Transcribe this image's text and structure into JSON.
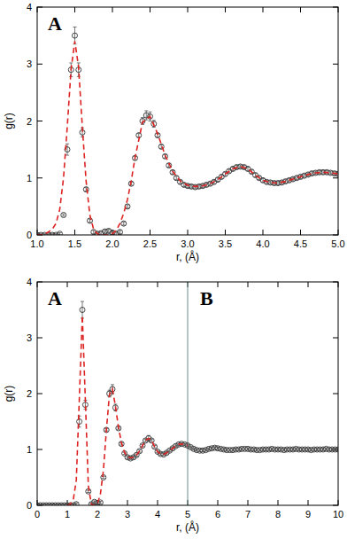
{
  "chart_data": [
    {
      "type": "scatter",
      "annotations": [
        "A"
      ],
      "x_label": "r, (Å)",
      "y_label": "g(r)",
      "xlim": [
        1.0,
        5.0
      ],
      "ylim": [
        0,
        4
      ],
      "xticks": [
        {
          "value": 1,
          "label": "1.0"
        },
        1.5,
        {
          "value": 2,
          "label": "2.0"
        },
        2.5,
        {
          "value": 3,
          "label": "3.0"
        },
        3.5,
        {
          "value": 4,
          "label": "4.0"
        },
        4.5,
        {
          "value": 5,
          "label": "5.0"
        }
      ],
      "yticks": [
        0,
        1,
        2,
        3,
        4
      ],
      "series": [
        {
          "type": "scatter",
          "marker": "open-circle",
          "color": "#333333",
          "x": [
            1.0,
            1.05,
            1.1,
            1.15,
            1.2,
            1.25,
            1.3,
            1.35,
            1.4,
            1.45,
            1.5,
            1.55,
            1.6,
            1.65,
            1.7,
            1.75,
            1.8,
            1.85,
            1.9,
            1.95,
            2.0,
            2.05,
            2.1,
            2.15,
            2.2,
            2.25,
            2.3,
            2.35,
            2.4,
            2.45,
            2.5,
            2.55,
            2.6,
            2.65,
            2.7,
            2.75,
            2.8,
            2.85,
            2.9,
            2.95,
            3.0,
            3.05,
            3.1,
            3.15,
            3.2,
            3.25,
            3.3,
            3.35,
            3.4,
            3.45,
            3.5,
            3.55,
            3.6,
            3.65,
            3.7,
            3.75,
            3.8,
            3.85,
            3.9,
            3.95,
            4.0,
            4.05,
            4.1,
            4.15,
            4.2,
            4.25,
            4.3,
            4.35,
            4.4,
            4.45,
            4.5,
            4.55,
            4.6,
            4.65,
            4.7,
            4.75,
            4.8,
            4.85,
            4.9,
            4.95,
            5.0
          ],
          "values": [
            0,
            0,
            0,
            0,
            0,
            0,
            0.02,
            0.35,
            1.5,
            2.9,
            3.5,
            2.9,
            1.8,
            0.8,
            0.25,
            0.05,
            0.02,
            0.03,
            0.06,
            0.07,
            0.04,
            0.02,
            0.05,
            0.2,
            0.5,
            0.9,
            1.35,
            1.75,
            2.0,
            2.1,
            2.08,
            1.95,
            1.75,
            1.55,
            1.38,
            1.22,
            1.1,
            1.0,
            0.93,
            0.88,
            0.86,
            0.85,
            0.84,
            0.85,
            0.86,
            0.88,
            0.9,
            0.93,
            0.97,
            1.02,
            1.07,
            1.12,
            1.16,
            1.19,
            1.2,
            1.19,
            1.16,
            1.11,
            1.05,
            1.0,
            0.96,
            0.93,
            0.92,
            0.91,
            0.91,
            0.92,
            0.94,
            0.96,
            0.98,
            1.0,
            1.02,
            1.04,
            1.06,
            1.08,
            1.09,
            1.1,
            1.1,
            1.1,
            1.09,
            1.08,
            1.07
          ],
          "errors": [
            0.02,
            0.02,
            0.02,
            0.02,
            0.02,
            0.02,
            0.02,
            0.02,
            0.1,
            0.12,
            0.15,
            0.12,
            0.08,
            0.03,
            0.03,
            0.03,
            0.03,
            0.03,
            0.03,
            0.03,
            0.03,
            0.03,
            0.03,
            0.03,
            0.03,
            0.03,
            0.03,
            0.03,
            0.06,
            0.08,
            0.08,
            0.06,
            0.03,
            0.03,
            0.03,
            0.03,
            0.03,
            0.03,
            0.03,
            0.03,
            0.03,
            0.03,
            0.03,
            0.03,
            0.03,
            0.03,
            0.03,
            0.03,
            0.03,
            0.03,
            0.03,
            0.03,
            0.03,
            0.03,
            0.03,
            0.03,
            0.03,
            0.03,
            0.03,
            0.03,
            0.03,
            0.03,
            0.03,
            0.03,
            0.03,
            0.03,
            0.03,
            0.03,
            0.03,
            0.03,
            0.03,
            0.03,
            0.03,
            0.03,
            0.03,
            0.03,
            0.03,
            0.03,
            0.03,
            0.03,
            0.03
          ]
        },
        {
          "type": "line",
          "line_style": "dashed",
          "color": "#dd2222",
          "x": [
            1.0,
            1.05,
            1.1,
            1.15,
            1.2,
            1.25,
            1.3,
            1.35,
            1.4,
            1.45,
            1.5,
            1.55,
            1.6,
            1.65,
            1.7,
            1.75,
            1.8,
            1.85,
            1.9,
            1.95,
            2.0,
            2.05,
            2.1,
            2.15,
            2.2,
            2.25,
            2.3,
            2.4,
            2.5,
            2.6,
            2.7,
            2.8,
            2.9,
            3.0,
            3.1,
            3.2,
            3.3,
            3.4,
            3.5,
            3.6,
            3.7,
            3.8,
            3.9,
            4.0,
            4.1,
            4.2,
            4.3,
            4.4,
            4.5,
            4.6,
            4.7,
            4.8,
            4.9,
            5.0
          ],
          "values": [
            0,
            0,
            0.02,
            0.05,
            0.1,
            0.2,
            0.45,
            1.0,
            1.9,
            2.9,
            3.4,
            2.95,
            1.9,
            0.95,
            0.35,
            0.1,
            0.02,
            0,
            0,
            0,
            0.02,
            0.08,
            0.2,
            0.38,
            0.62,
            0.95,
            1.35,
            1.98,
            2.08,
            1.78,
            1.4,
            1.12,
            0.95,
            0.87,
            0.85,
            0.86,
            0.9,
            0.97,
            1.07,
            1.16,
            1.2,
            1.16,
            1.05,
            0.96,
            0.92,
            0.91,
            0.94,
            0.98,
            1.02,
            1.06,
            1.09,
            1.1,
            1.09,
            1.07
          ]
        }
      ]
    },
    {
      "type": "scatter",
      "annotations": [
        "A",
        "B"
      ],
      "vline": 5,
      "x_label": "r, (Å)",
      "y_label": "g(r)",
      "xlim": [
        0,
        10
      ],
      "ylim": [
        0,
        4
      ],
      "xticks": [
        0,
        1,
        2,
        3,
        4,
        5,
        6,
        7,
        8,
        9,
        10
      ],
      "yticks": [
        0,
        1,
        2,
        3,
        4
      ],
      "series": [
        {
          "type": "scatter",
          "marker": "open-circle",
          "color": "#333333",
          "x": [
            0,
            0.1,
            0.2,
            0.3,
            0.4,
            0.5,
            0.6,
            0.7,
            0.8,
            0.9,
            1.0,
            1.1,
            1.2,
            1.3,
            1.4,
            1.5,
            1.6,
            1.7,
            1.8,
            1.9,
            2.0,
            2.1,
            2.2,
            2.3,
            2.4,
            2.5,
            2.6,
            2.7,
            2.8,
            2.9,
            3.0,
            3.1,
            3.2,
            3.3,
            3.4,
            3.5,
            3.6,
            3.7,
            3.8,
            3.9,
            4.0,
            4.1,
            4.2,
            4.3,
            4.4,
            4.5,
            4.6,
            4.7,
            4.8,
            4.9,
            5.0,
            5.1,
            5.2,
            5.3,
            5.4,
            5.5,
            5.6,
            5.7,
            5.8,
            5.9,
            6.0,
            6.1,
            6.2,
            6.3,
            6.4,
            6.5,
            6.6,
            6.7,
            6.8,
            6.9,
            7.0,
            7.1,
            7.2,
            7.3,
            7.4,
            7.5,
            7.6,
            7.7,
            7.8,
            7.9,
            8.0,
            8.1,
            8.2,
            8.3,
            8.4,
            8.5,
            8.6,
            8.7,
            8.8,
            8.9,
            9.0,
            9.1,
            9.2,
            9.3,
            9.4,
            9.5,
            9.6,
            9.7,
            9.8,
            9.9,
            10.0
          ],
          "values": [
            0,
            0,
            0,
            0,
            0,
            0,
            0,
            0,
            0,
            0,
            0,
            0,
            0,
            0.02,
            1.5,
            3.5,
            1.8,
            0.25,
            0.02,
            0.06,
            0.04,
            0.05,
            0.5,
            1.35,
            2.0,
            2.08,
            1.75,
            1.38,
            1.1,
            0.93,
            0.86,
            0.84,
            0.86,
            0.9,
            0.97,
            1.07,
            1.16,
            1.2,
            1.16,
            1.05,
            0.96,
            0.92,
            0.91,
            0.94,
            0.98,
            1.02,
            1.06,
            1.09,
            1.1,
            1.09,
            1.07,
            1.04,
            1.01,
            0.99,
            0.98,
            0.98,
            0.99,
            1.01,
            1.02,
            1.03,
            1.02,
            1.01,
            1.0,
            0.99,
            0.99,
            0.99,
            1.0,
            1.0,
            1.01,
            1.01,
            1.01,
            1.0,
            1.0,
            0.99,
            0.99,
            1.0,
            1.0,
            1.0,
            1.01,
            1.0,
            1.0,
            1.0,
            0.99,
            1.0,
            1.0,
            1.0,
            1.01,
            1.0,
            1.0,
            1.0,
            1.0,
            0.99,
            1.0,
            1.0,
            1.0,
            1.0,
            1.01,
            1.0,
            1.0,
            1.0,
            1.0
          ],
          "errors": [
            0.02,
            0.02,
            0.02,
            0.02,
            0.02,
            0.02,
            0.02,
            0.02,
            0.02,
            0.02,
            0.02,
            0.02,
            0.02,
            0.02,
            0.1,
            0.15,
            0.08,
            0.02,
            0.02,
            0.02,
            0.02,
            0.02,
            0.02,
            0.02,
            0.06,
            0.08,
            0.06,
            0.02,
            0.02,
            0.02,
            0.02,
            0.02,
            0.02,
            0.02,
            0.02,
            0.02,
            0.02,
            0.05,
            0.02,
            0.02,
            0.02,
            0.02,
            0.02,
            0.02,
            0.02,
            0.02,
            0.02,
            0.02,
            0.02,
            0.02,
            0.02,
            0.02,
            0.02,
            0.02,
            0.02,
            0.02,
            0.02,
            0.02,
            0.02,
            0.02,
            0.02,
            0.02,
            0.02,
            0.02,
            0.02,
            0.02,
            0.02,
            0.02,
            0.02,
            0.02,
            0.02,
            0.02,
            0.02,
            0.02,
            0.02,
            0.02,
            0.02,
            0.02,
            0.02,
            0.02,
            0.02,
            0.02,
            0.02,
            0.02,
            0.02,
            0.02,
            0.02,
            0.02,
            0.02,
            0.02,
            0.02,
            0.02,
            0.02,
            0.02,
            0.02,
            0.02,
            0.02,
            0.02,
            0.02,
            0.02,
            0.02
          ]
        },
        {
          "type": "line",
          "line_style": "dashed",
          "color": "#dd2222",
          "x": [
            1.0,
            1.1,
            1.2,
            1.3,
            1.4,
            1.5,
            1.6,
            1.7,
            1.8,
            1.9,
            2.0,
            2.1,
            2.2,
            2.3,
            2.4,
            2.5,
            2.6,
            2.7,
            2.8,
            2.9,
            3.0,
            3.1,
            3.2,
            3.3,
            3.4,
            3.5,
            3.6,
            3.7,
            3.8,
            3.9,
            4.0,
            4.1,
            4.2,
            4.3,
            4.4,
            4.5,
            4.6,
            4.7,
            4.8,
            4.9,
            5.0
          ],
          "values": [
            0,
            0.02,
            0.1,
            0.45,
            1.9,
            3.4,
            1.9,
            0.35,
            0.02,
            0,
            0.02,
            0.2,
            0.62,
            1.35,
            1.98,
            2.08,
            1.78,
            1.4,
            1.12,
            0.95,
            0.87,
            0.85,
            0.86,
            0.9,
            0.97,
            1.07,
            1.16,
            1.2,
            1.16,
            1.05,
            0.96,
            0.92,
            0.91,
            0.94,
            0.98,
            1.02,
            1.06,
            1.09,
            1.1,
            1.09,
            1.07
          ]
        }
      ]
    }
  ]
}
